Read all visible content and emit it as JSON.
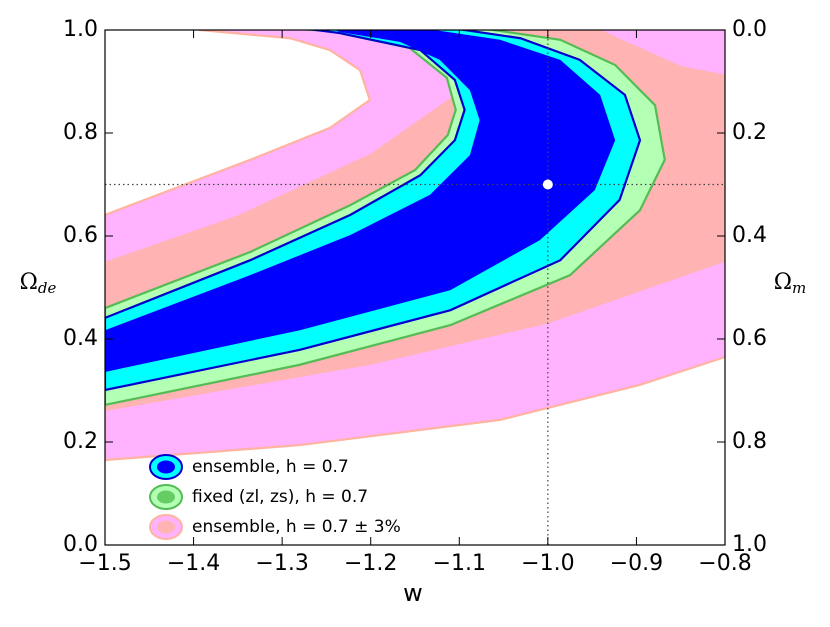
{
  "chart_data": {
    "type": "contour",
    "xlabel": "w",
    "ylabel": {
      "symbol": "Ω",
      "subscript": "de"
    },
    "y2label": {
      "symbol": "Ω",
      "subscript": "m"
    },
    "xlim": [
      -1.5,
      -0.8
    ],
    "xticks": [
      {
        "value": -1.5,
        "label": "−1.5"
      },
      {
        "value": -1.4,
        "label": "−1.4"
      },
      {
        "value": -1.3,
        "label": "−1.3"
      },
      {
        "value": -1.2,
        "label": "−1.2"
      },
      {
        "value": -1.1,
        "label": "−1.1"
      },
      {
        "value": -1.0,
        "label": "−1.0"
      },
      {
        "value": -0.9,
        "label": "−0.9"
      },
      {
        "value": -0.8,
        "label": "−0.8"
      }
    ],
    "ylim": [
      0,
      1
    ],
    "yticks": [
      {
        "value": 0,
        "label": "0.0"
      },
      0.2,
      0.4,
      0.6,
      0.8,
      {
        "value": 1,
        "label": "1.0"
      }
    ],
    "y2lim": [
      1,
      0
    ],
    "y2ticks": [
      {
        "value": 0,
        "label": "0.0"
      },
      0.2,
      0.4,
      0.6,
      0.8,
      {
        "value": 1,
        "label": "1.0"
      }
    ],
    "reference": {
      "x": -1.0,
      "y": 0.7
    },
    "series": [
      {
        "name": "ensemble, h = 0.7",
        "colors": [
          "#00ffff",
          "#0000ff"
        ],
        "edge_color": "#0000cc",
        "regions": [
          {
            "x": [
              -1.5,
              -1.336,
              -1.223,
              -1.144,
              -1.105,
              -1.094,
              -1.105,
              -1.144,
              -1.235,
              -1.28,
              -1.11,
              -1.031,
              -0.964,
              -0.913,
              -0.896,
              -0.919,
              -0.986,
              -1.11,
              -1.28,
              -1.5
            ],
            "y": [
              0.441,
              0.553,
              0.641,
              0.718,
              0.786,
              0.845,
              0.903,
              0.961,
              0.994,
              1.004,
              1.004,
              0.984,
              0.942,
              0.874,
              0.786,
              0.67,
              0.553,
              0.456,
              0.379,
              0.301
            ]
          },
          {
            "x": [
              -1.5,
              -1.336,
              -1.223,
              -1.133,
              -1.088,
              -1.077,
              -1.088,
              -1.122,
              -1.167,
              -1.235,
              -1.246,
              -1.144,
              -1.054,
              -0.986,
              -0.941,
              -0.924,
              -0.947,
              -1.009,
              -1.11,
              -1.28,
              -1.5
            ],
            "y": [
              0.417,
              0.524,
              0.602,
              0.68,
              0.757,
              0.825,
              0.883,
              0.942,
              0.977,
              0.996,
              1.004,
              1.004,
              0.981,
              0.942,
              0.874,
              0.786,
              0.689,
              0.592,
              0.495,
              0.417,
              0.336
            ]
          }
        ]
      },
      {
        "name": "fixed (zl, zs), h = 0.7",
        "colors": [
          "#b3ffb3",
          "#66cc66"
        ],
        "edge_color": "#55bb55",
        "regions": [
          {
            "x": [
              -1.5,
              -1.336,
              -1.223,
              -1.15,
              -1.113,
              -1.104,
              -1.114,
              -1.156,
              -1.246,
              -1.302,
              -1.077,
              -0.986,
              -0.924,
              -0.879,
              -0.868,
              -0.896,
              -0.975,
              -1.11,
              -1.28,
              -1.5
            ],
            "y": [
              0.46,
              0.569,
              0.66,
              0.728,
              0.796,
              0.845,
              0.907,
              0.965,
              0.998,
              1.004,
              1.004,
              0.981,
              0.932,
              0.854,
              0.748,
              0.65,
              0.524,
              0.427,
              0.35,
              0.272
            ]
          },
          {
            "x": [
              -1.5,
              -1.336,
              -1.223,
              -1.144,
              -1.105,
              -1.094,
              -1.105,
              -1.144,
              -1.235,
              -1.28,
              -1.11,
              -1.031,
              -0.964,
              -0.913,
              -0.896,
              -0.919,
              -0.986,
              -1.11,
              -1.28,
              -1.5
            ],
            "y": [
              0.441,
              0.553,
              0.641,
              0.718,
              0.786,
              0.845,
              0.903,
              0.961,
              0.994,
              1.004,
              1.004,
              0.984,
              0.942,
              0.874,
              0.786,
              0.67,
              0.553,
              0.456,
              0.379,
              0.301
            ]
          }
        ]
      },
      {
        "name": "ensemble, h = 0.7 ± 3%",
        "colors": [
          "#ffb3ff",
          "#ffb3b3"
        ],
        "edge_color": "#ffb3a0",
        "regions": [
          {
            "x": [
              -1.5,
              -1.28,
              -1.054,
              -0.896,
              -0.8,
              -0.7,
              -0.7,
              -1.393,
              -1.393,
              -1.291,
              -1.246,
              -1.212,
              -1.201,
              -1.246,
              -1.336,
              -1.5
            ],
            "y": [
              0.165,
              0.194,
              0.243,
              0.311,
              0.365,
              0.4,
              1.1,
              1.1,
              1.0,
              0.984,
              0.961,
              0.922,
              0.864,
              0.81,
              0.748,
              0.641
            ]
          },
          {
            "x": [
              -1.5,
              -1.35,
              -1.2,
              -1.1,
              -1.04,
              -1.0,
              -0.9,
              -0.94,
              -0.85,
              -0.7,
              -0.7,
              -0.8,
              -0.9,
              -1.0,
              -1.2,
              -1.5
            ],
            "y": [
              0.55,
              0.64,
              0.76,
              0.88,
              1.0,
              1.1,
              1.1,
              1.0,
              0.93,
              0.88,
              0.6,
              0.55,
              0.49,
              0.43,
              0.35,
              0.26
            ]
          }
        ]
      }
    ]
  }
}
